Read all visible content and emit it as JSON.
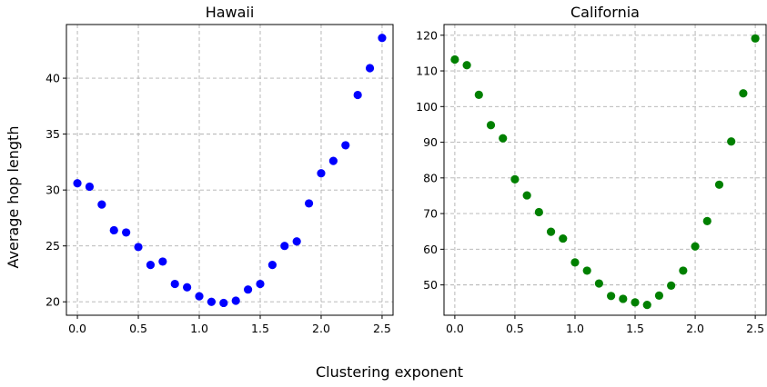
{
  "chart_data": [
    {
      "type": "scatter",
      "title": "Hawaii",
      "color": "#0000ff",
      "x": [
        0.0,
        0.1,
        0.2,
        0.3,
        0.4,
        0.5,
        0.6,
        0.7,
        0.8,
        0.9,
        1.0,
        1.1,
        1.2,
        1.3,
        1.4,
        1.5,
        1.6,
        1.7,
        1.8,
        1.9,
        2.0,
        2.1,
        2.2,
        2.3,
        2.4,
        2.5
      ],
      "y": [
        30.6,
        30.3,
        28.7,
        26.4,
        26.2,
        24.9,
        23.3,
        23.6,
        21.6,
        21.3,
        20.5,
        20.0,
        19.9,
        20.1,
        21.1,
        21.6,
        23.3,
        25.0,
        25.4,
        28.8,
        31.5,
        32.6,
        34.0,
        38.5,
        40.9,
        43.6
      ],
      "xlim": [
        -0.09,
        2.59
      ],
      "ylim": [
        18.8,
        44.8
      ],
      "xticks": [
        "0.0",
        "0.5",
        "1.0",
        "1.5",
        "2.0",
        "2.5"
      ],
      "xtick_values": [
        0,
        0.5,
        1,
        1.5,
        2,
        2.5
      ],
      "yticks": [
        "20",
        "25",
        "30",
        "35",
        "40"
      ],
      "ytick_values": [
        20,
        25,
        30,
        35,
        40
      ],
      "grid": true
    },
    {
      "type": "scatter",
      "title": "California",
      "color": "#008000",
      "x": [
        0.0,
        0.1,
        0.2,
        0.3,
        0.4,
        0.5,
        0.6,
        0.7,
        0.8,
        0.9,
        1.0,
        1.1,
        1.2,
        1.3,
        1.4,
        1.5,
        1.6,
        1.7,
        1.8,
        1.9,
        2.0,
        2.1,
        2.2,
        2.3,
        2.4,
        2.5
      ],
      "y": [
        113.2,
        111.6,
        103.3,
        94.8,
        91.1,
        79.6,
        75.1,
        70.4,
        64.9,
        63.0,
        56.3,
        54.0,
        50.4,
        46.9,
        46.1,
        45.1,
        44.4,
        47.0,
        49.8,
        54.0,
        60.8,
        67.9,
        78.1,
        90.2,
        103.7,
        119.1
      ],
      "xlim": [
        -0.09,
        2.59
      ],
      "ylim": [
        41.5,
        123.0
      ],
      "xticks": [
        "0.0",
        "0.5",
        "1.0",
        "1.5",
        "2.0",
        "2.5"
      ],
      "xtick_values": [
        0,
        0.5,
        1,
        1.5,
        2,
        2.5
      ],
      "yticks": [
        "50",
        "60",
        "70",
        "80",
        "90",
        "100",
        "110",
        "120"
      ],
      "ytick_values": [
        50,
        60,
        70,
        80,
        90,
        100,
        110,
        120
      ],
      "grid": true
    }
  ],
  "labels": {
    "ylabel": "Average hop length",
    "xlabel": "Clustering exponent"
  }
}
